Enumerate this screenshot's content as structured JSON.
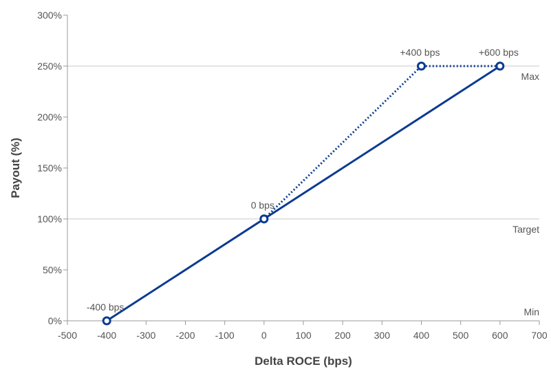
{
  "chart_data": {
    "type": "line",
    "xlabel": "Delta ROCE (bps)",
    "ylabel": "Payout (%)",
    "xlim": [
      -500,
      700
    ],
    "ylim": [
      0,
      300
    ],
    "x_ticks": [
      "-500",
      "-400",
      "-300",
      "-200",
      "-100",
      "0",
      "100",
      "200",
      "300",
      "400",
      "500",
      "600",
      "700"
    ],
    "x_tick_values": [
      -500,
      -400,
      -300,
      -200,
      -100,
      0,
      100,
      200,
      300,
      400,
      500,
      600,
      700
    ],
    "y_ticks": [
      "0%",
      "50%",
      "100%",
      "150%",
      "200%",
      "250%",
      "300%"
    ],
    "y_tick_values": [
      0,
      50,
      100,
      150,
      200,
      250,
      300
    ],
    "reference_lines": [
      {
        "label": "Min",
        "y": 0
      },
      {
        "label": "Target",
        "y": 100
      },
      {
        "label": "Max",
        "y": 250
      }
    ],
    "series": [
      {
        "style": "solid",
        "points": [
          [
            -400,
            0
          ],
          [
            0,
            100
          ],
          [
            600,
            250
          ]
        ]
      },
      {
        "style": "dotted",
        "points": [
          [
            0,
            100
          ],
          [
            400,
            250
          ],
          [
            600,
            250
          ]
        ]
      }
    ],
    "point_labels": [
      {
        "label": "-400 bps",
        "x": -400,
        "y": 0
      },
      {
        "label": "0 bps",
        "x": 0,
        "y": 100
      },
      {
        "label": "+400 bps",
        "x": 400,
        "y": 250
      },
      {
        "label": "+600 bps",
        "x": 600,
        "y": 250
      }
    ],
    "grid": false,
    "colors": {
      "line": "#0a3b91",
      "reference": "#c8c8c8",
      "axis": "#999999",
      "text": "#555555"
    }
  }
}
